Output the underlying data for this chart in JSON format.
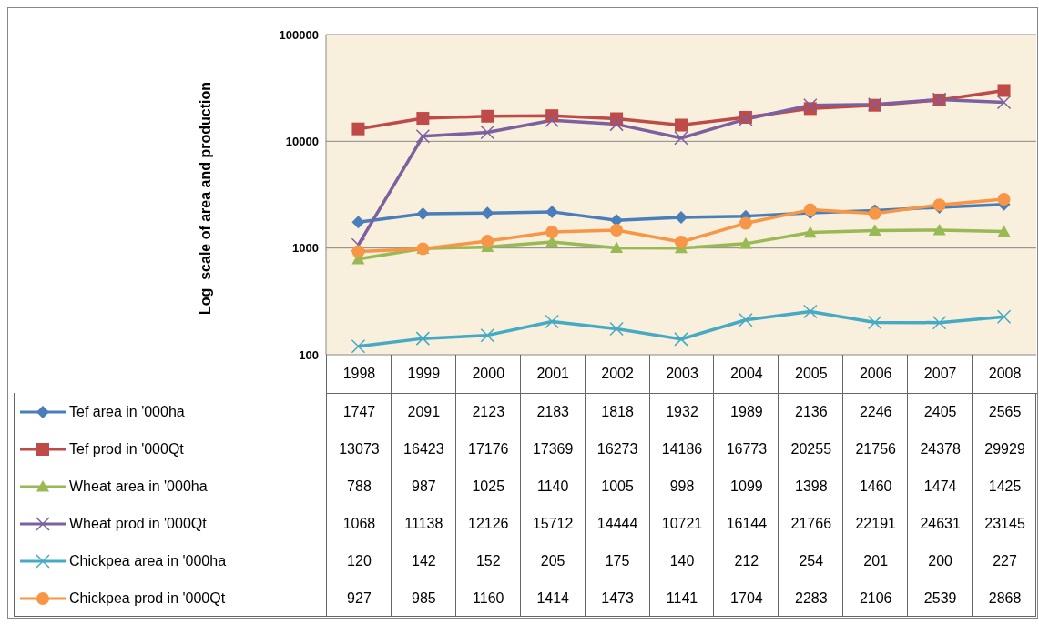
{
  "chart_data": {
    "type": "line",
    "ylabel": "Log  scale of area and production",
    "categories": [
      "1998",
      "1999",
      "2000",
      "2001",
      "2002",
      "2003",
      "2004",
      "2005",
      "2006",
      "2007",
      "2008"
    ],
    "log": "y",
    "ylim": [
      100,
      100000
    ],
    "yticks": [
      100,
      1000,
      10000,
      100000
    ],
    "grid": "y",
    "legend": "bottom",
    "data_labels": true,
    "series": [
      {
        "name": "Tef area in '000ha",
        "color": "#4a7ebb",
        "marker": "diamond",
        "values": [
          1747,
          2091,
          2123,
          2183,
          1818,
          1932,
          1989,
          2136,
          2246,
          2405,
          2565
        ]
      },
      {
        "name": "Tef prod in '000Qt",
        "color": "#be4b48",
        "marker": "square",
        "values": [
          13073,
          16423,
          17176,
          17369,
          16273,
          14186,
          16773,
          20255,
          21756,
          24378,
          29929
        ]
      },
      {
        "name": "Wheat area in '000ha",
        "color": "#98b954",
        "marker": "triangle",
        "values": [
          788,
          987,
          1025,
          1140,
          1005,
          998,
          1099,
          1398,
          1460,
          1474,
          1425
        ]
      },
      {
        "name": "Wheat prod in '000Qt",
        "color": "#7d60a0",
        "marker": "cross",
        "values": [
          1068,
          11138,
          12126,
          15712,
          14444,
          10721,
          16144,
          21766,
          22191,
          24631,
          23145
        ]
      },
      {
        "name": "Chickpea area in '000ha",
        "color": "#46aac5",
        "marker": "cross",
        "values": [
          120,
          142,
          152,
          205,
          175,
          140,
          212,
          254,
          201,
          200,
          227
        ]
      },
      {
        "name": "Chickpea prod in '000Qt",
        "color": "#f79646",
        "marker": "circle",
        "values": [
          927,
          985,
          1160,
          1414,
          1473,
          1141,
          1704,
          2283,
          2106,
          2539,
          2868
        ]
      }
    ]
  }
}
